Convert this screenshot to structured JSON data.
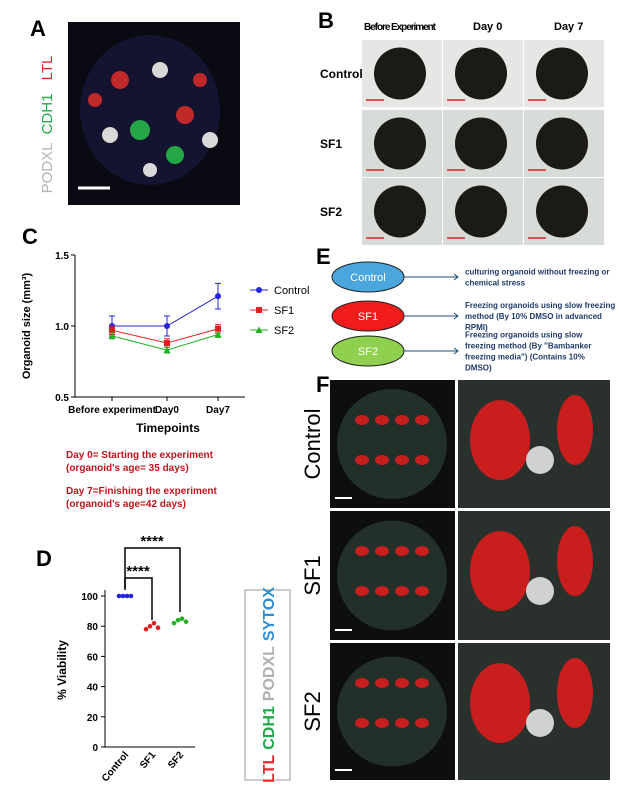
{
  "panel_a": {
    "label": "A",
    "channels": [
      {
        "name": "LTL",
        "color": "#e8262b"
      },
      {
        "name": "CDH1",
        "color": "#1fa84a"
      },
      {
        "name": "PODXL",
        "color": "#b5b5b5"
      }
    ]
  },
  "panel_b": {
    "label": "B",
    "columns": [
      "Before Experiment",
      "Day 0",
      "Day 7"
    ],
    "rows": [
      "Control",
      "SF1",
      "SF2"
    ]
  },
  "panel_c": {
    "label": "C",
    "notes": [
      "Day 0= Starting the experiment",
      "(organoid's age= 35 days)",
      "Day 7=Finishing the experiment",
      "(organoid's age=42 days)"
    ]
  },
  "panel_d": {
    "label": "D"
  },
  "panel_e": {
    "label": "E",
    "nodes": [
      {
        "label": "Control",
        "color": "#4aa6dc",
        "description": [
          "culturing organoid without freezing or",
          "chemical stress"
        ]
      },
      {
        "label": "SF1",
        "color": "#f01c1c",
        "description": [
          "Freezing organoids using slow freezing",
          "method (By 10% DMSO in advanced",
          "RPMI)"
        ]
      },
      {
        "label": "SF2",
        "color": "#8fd14f",
        "description": [
          "Freezing organoids using slow",
          "freezing method (By \"Bambanker",
          "freezing media\") (Contains 10%",
          "DMSO)"
        ]
      }
    ]
  },
  "panel_f": {
    "label": "F",
    "rows": [
      "Control",
      "SF1",
      "SF2"
    ],
    "stains": [
      {
        "name": "LTL",
        "color": "#e8262b"
      },
      {
        "name": "CDH1",
        "color": "#1fa84a"
      },
      {
        "name": "PODXL",
        "color": "#b0b0b0"
      },
      {
        "name": "SYTOX",
        "color": "#2d8fd8"
      }
    ]
  },
  "chart_data": [
    {
      "type": "line",
      "y_label": "Organoid size (mm³)",
      "x_label": "Timepoints",
      "categories": [
        "Before experiment",
        "Day0",
        "Day7"
      ],
      "series": [
        {
          "name": "Control",
          "color": "#2323e0",
          "marker": "circle",
          "values": [
            1.0,
            1.0,
            1.21
          ],
          "errors": [
            0.07,
            0.07,
            0.09
          ]
        },
        {
          "name": "SF1",
          "color": "#e02020",
          "marker": "square",
          "values": [
            0.97,
            0.88,
            0.98
          ],
          "errors": [
            0.03,
            0.03,
            0.03
          ]
        },
        {
          "name": "SF2",
          "color": "#22b022",
          "marker": "triangle",
          "values": [
            0.93,
            0.83,
            0.94
          ],
          "errors": [
            0.02,
            0.02,
            0.02
          ]
        }
      ],
      "ylim": [
        0.5,
        1.5
      ],
      "yticks": [
        {
          "value": 0.5,
          "label": "0.5"
        },
        {
          "value": 1,
          "label": "1.0"
        },
        {
          "value": 1.5,
          "label": "1.5"
        }
      ]
    },
    {
      "type": "scatter",
      "y_label": "% Viability",
      "categories": [
        "Control",
        "SF1",
        "SF2"
      ],
      "colors": [
        "#2323e0",
        "#e02020",
        "#22b022"
      ],
      "values": [
        [
          100,
          100,
          100,
          100
        ],
        [
          78,
          80,
          82,
          79
        ],
        [
          82,
          84,
          85,
          83
        ]
      ],
      "annotations": [
        "****",
        "****"
      ],
      "ylim": [
        0,
        100
      ],
      "yticks": [
        0,
        20,
        40,
        60,
        80,
        100
      ]
    }
  ]
}
